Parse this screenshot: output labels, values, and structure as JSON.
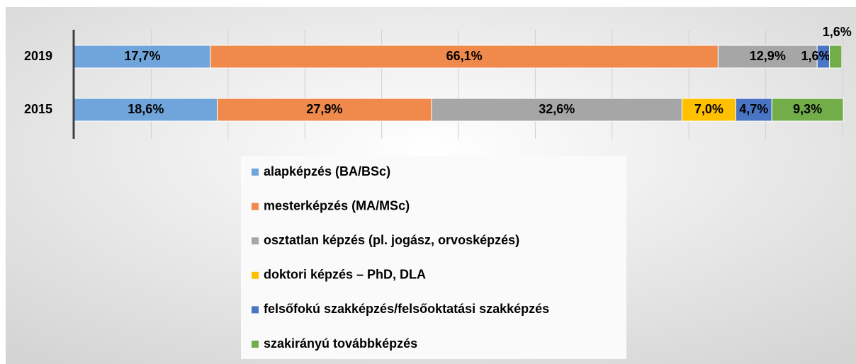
{
  "chart_data": {
    "type": "stacked-bar-horizontal",
    "categories": [
      "2019",
      "2015"
    ],
    "series": [
      {
        "name": "alapképzés (BA/BSc)",
        "color": "#6fa5da",
        "values": [
          17.7,
          18.6
        ],
        "value_labels": [
          "17,7%",
          "18,6%"
        ]
      },
      {
        "name": "mesterképzés (MA/MSc)",
        "color": "#f0894c",
        "values": [
          66.1,
          27.9
        ],
        "value_labels": [
          "66,1%",
          "27,9%"
        ]
      },
      {
        "name": "osztatlan képzés (pl. jogász, orvosképzés)",
        "color": "#a6a6a6",
        "values": [
          12.9,
          32.6
        ],
        "value_labels": [
          "12,9%",
          "32,6%"
        ]
      },
      {
        "name": "doktori képzés – PhD, DLA",
        "color": "#ffc000",
        "values": [
          null,
          7.0
        ],
        "value_labels": [
          null,
          "7,0%"
        ]
      },
      {
        "name": "felsőfokú szakképzés/felsőoktatási szakképzés",
        "color": "#4a74c4",
        "values": [
          1.6,
          4.7
        ],
        "value_labels": [
          "1,6%",
          "4,7%"
        ]
      },
      {
        "name": "szakirányú továbbképzés",
        "color": "#72ad4a",
        "values": [
          1.6,
          9.3
        ],
        "value_labels": [
          "1,6%",
          "9,3%"
        ]
      }
    ],
    "xlim": [
      0,
      100
    ],
    "xticks": [
      0,
      10,
      20,
      30,
      40,
      50,
      60,
      70,
      80,
      90,
      100
    ],
    "grid": true,
    "legend": "bottom"
  }
}
